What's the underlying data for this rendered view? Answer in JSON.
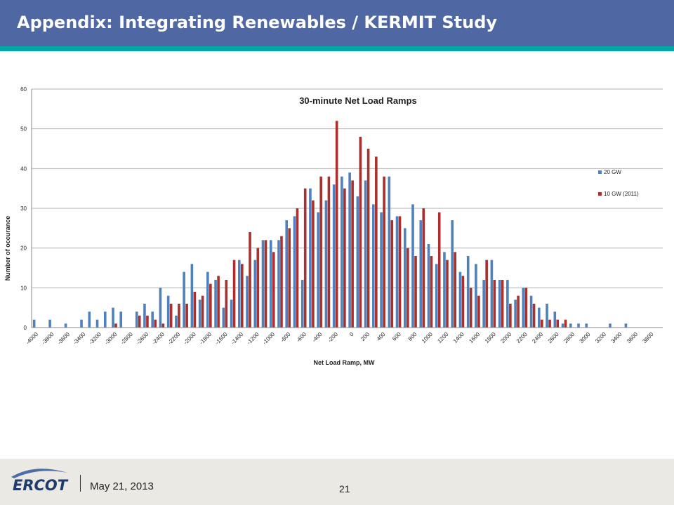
{
  "header": {
    "title": "Appendix: Integrating Renewables / KERMIT Study"
  },
  "footer": {
    "logo_text": "ERCOT",
    "date": "May 21, 2013",
    "page_number": "21"
  },
  "colors": {
    "header_bg": "#4f67a3",
    "accent_stripe": "#00a7a7",
    "series_20gw": "#4f81bd",
    "series_10gw": "#a9302d"
  },
  "chart_data": {
    "type": "bar",
    "title": "30-minute Net Load Ramps",
    "xlabel": "Net Load Ramp, MW",
    "ylabel": "Number of occurance",
    "ylim": [
      0,
      60
    ],
    "yticks": [
      0,
      10,
      20,
      30,
      40,
      50,
      60
    ],
    "grid": true,
    "legend": "right",
    "x": [
      -4000,
      -3900,
      -3800,
      -3700,
      -3600,
      -3500,
      -3400,
      -3300,
      -3200,
      -3100,
      -3000,
      -2900,
      -2800,
      -2700,
      -2600,
      -2500,
      -2400,
      -2300,
      -2200,
      -2100,
      -2000,
      -1900,
      -1800,
      -1700,
      -1600,
      -1500,
      -1400,
      -1300,
      -1200,
      -1100,
      -1000,
      -900,
      -800,
      -700,
      -600,
      -500,
      -400,
      -300,
      -200,
      -100,
      0,
      100,
      200,
      300,
      400,
      500,
      600,
      700,
      800,
      900,
      1000,
      1100,
      1200,
      1300,
      1400,
      1500,
      1600,
      1700,
      1800,
      1900,
      2000,
      2100,
      2200,
      2300,
      2400,
      2500,
      2600,
      2700,
      2800,
      2900,
      3000,
      3100,
      3200,
      3300,
      3400,
      3500,
      3600,
      3700,
      3800,
      3900
    ],
    "xtick_labels": [
      "-4000",
      "-3800",
      "-3600",
      "-3400",
      "-3200",
      "-3000",
      "-2800",
      "-2600",
      "-2400",
      "-2200",
      "-2000",
      "-1800",
      "-1600",
      "-1400",
      "-1200",
      "-1000",
      "-800",
      "-600",
      "-400",
      "-200",
      "0",
      "200",
      "400",
      "600",
      "800",
      "1000",
      "1200",
      "1400",
      "1600",
      "1800",
      "2000",
      "2200",
      "2400",
      "2600",
      "2800",
      "3000",
      "3200",
      "3400",
      "3600",
      "3800"
    ],
    "series": [
      {
        "name": "20 GW",
        "color": "#4f81bd",
        "values": [
          2,
          0,
          2,
          0,
          1,
          0,
          2,
          4,
          2,
          4,
          5,
          4,
          0,
          4,
          6,
          4,
          10,
          8,
          3,
          14,
          16,
          7,
          14,
          12,
          5,
          7,
          17,
          13,
          17,
          22,
          22,
          22,
          27,
          28,
          12,
          35,
          29,
          32,
          36,
          38,
          39,
          33,
          37,
          31,
          29,
          38,
          28,
          25,
          31,
          27,
          21,
          16,
          19,
          27,
          14,
          18,
          16,
          12,
          17,
          12,
          12,
          7,
          10,
          8,
          5,
          6,
          4,
          1,
          1,
          1,
          1,
          0,
          0,
          1,
          0,
          1,
          0,
          0,
          0,
          0
        ]
      },
      {
        "name": "10 GW (2011)",
        "color": "#a9302d",
        "values": [
          0,
          0,
          0,
          0,
          0,
          0,
          0,
          0,
          0,
          0,
          1,
          0,
          0,
          3,
          3,
          2,
          1,
          6,
          6,
          6,
          9,
          8,
          11,
          13,
          12,
          17,
          16,
          24,
          20,
          22,
          19,
          23,
          25,
          30,
          35,
          32,
          38,
          38,
          52,
          35,
          37,
          48,
          45,
          43,
          38,
          27,
          28,
          20,
          18,
          30,
          18,
          29,
          17,
          19,
          13,
          10,
          8,
          17,
          12,
          12,
          6,
          8,
          10,
          6,
          2,
          2,
          2,
          2,
          0,
          0,
          0,
          0,
          0,
          0,
          0,
          0,
          0,
          0,
          0,
          0
        ]
      }
    ]
  }
}
